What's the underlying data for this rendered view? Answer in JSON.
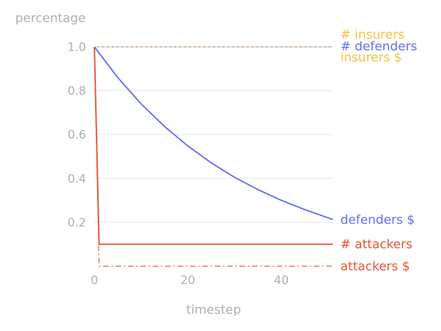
{
  "chart_data": {
    "type": "line",
    "xlabel": "timestep",
    "ylabel": "percentage",
    "xlim": [
      0,
      51
    ],
    "ylim": [
      0,
      1.0
    ],
    "xticks": [
      0,
      20,
      40
    ],
    "yticks": [
      0.2,
      0.4,
      0.6,
      0.8,
      1.0
    ],
    "ytick_labels": [
      "0.2",
      "0.4",
      "0.6",
      "0.8",
      "1.0"
    ],
    "xtick_labels": [
      "0",
      "20",
      "40"
    ],
    "grid": "horizontal",
    "legend": "direct labels at right end of each line",
    "series": [
      {
        "name": "# insurers",
        "color": "#f5c242",
        "style": "solid-thin",
        "x": [
          0,
          51
        ],
        "y": [
          1.0,
          1.0
        ]
      },
      {
        "name": "# defenders",
        "color": "#6470f0",
        "style": "solid-thin",
        "x": [
          0,
          51
        ],
        "y": [
          1.0,
          1.0
        ]
      },
      {
        "name": "insurers $",
        "color": "#f5c242",
        "style": "dashed",
        "x": [
          0,
          51
        ],
        "y": [
          1.0,
          1.0
        ]
      },
      {
        "name": "defenders $",
        "color": "#6470f0",
        "style": "solid",
        "x": [
          0,
          5,
          10,
          15,
          20,
          25,
          30,
          35,
          40,
          45,
          51
        ],
        "y": [
          1.0,
          0.86,
          0.74,
          0.637,
          0.548,
          0.471,
          0.405,
          0.349,
          0.3,
          0.258,
          0.213
        ]
      },
      {
        "name": "# attackers",
        "color": "#e8553a",
        "style": "solid",
        "x": [
          0,
          1,
          1,
          51
        ],
        "y": [
          1.0,
          0.1,
          0.1,
          0.1
        ]
      },
      {
        "name": "attackers $",
        "color": "#e8553a",
        "style": "dashdot",
        "x": [
          0,
          1,
          1,
          51
        ],
        "y": [
          1.0,
          0.0,
          0.0,
          0.0
        ]
      }
    ]
  }
}
